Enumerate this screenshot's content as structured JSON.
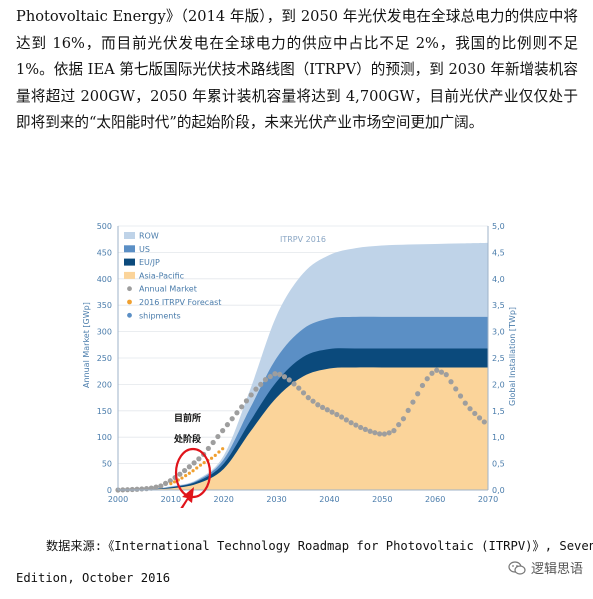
{
  "article": {
    "paragraph": "Photovoltaic Energy》（2014 年版），到 2050 年光伏发电在全球总电力的供应中将达到 16%，而目前光伏发电在全球电力的供应中占比不足 2%，我国的比例则不足 1%。依据 IEA 第七版国际光伏技术路线图（ITRPV）的预测，到 2030 年新增装机容量将超过 200GW，2050 年累计装机容量将达到 4,700GW，目前光伏产业仅仅处于即将到来的“太阳能时代”的起始阶段，未来光伏产业市场空间更加广阔。"
  },
  "chart_data": {
    "type": "area",
    "watermark": "ITRPV 2016",
    "ylabel_left": "Annual Market [GWp]",
    "ylabel_right": "Global Installation [TWp]",
    "x_ticks": [
      "2000",
      "2010",
      "2020",
      "2030",
      "2040",
      "2050",
      "2060",
      "2070"
    ],
    "y_ticks_left": [
      "0",
      "50",
      "100",
      "150",
      "200",
      "250",
      "300",
      "350",
      "400",
      "450",
      "500"
    ],
    "y_ticks_right": [
      "0,0",
      "0,5",
      "1,0",
      "1,5",
      "2,0",
      "2,5",
      "3,0",
      "3,5",
      "4,0",
      "4,5",
      "5,0"
    ],
    "xlim": [
      2000,
      2070
    ],
    "ylim_left": [
      0,
      500
    ],
    "ylim_right": [
      0,
      5.0
    ],
    "legend_position": "top-left",
    "legend": [
      {
        "key": "row",
        "name": "ROW",
        "color": "#bfd3e8",
        "kind": "swatch"
      },
      {
        "key": "us",
        "name": "US",
        "color": "#5b8fc5",
        "kind": "swatch"
      },
      {
        "key": "eujp",
        "name": "EU/JP",
        "color": "#0b4a7c",
        "kind": "swatch"
      },
      {
        "key": "ap",
        "name": "Asia-Pacific",
        "color": "#fbd49a",
        "kind": "swatch"
      },
      {
        "key": "annual",
        "name": "Annual Market",
        "color": "#9e9e9e",
        "kind": "dot"
      },
      {
        "key": "forecast",
        "name": "2016 ITRPV Forecast",
        "color": "#f0a030",
        "kind": "dot"
      },
      {
        "key": "shipments",
        "name": "shipments",
        "color": "#5b8fc5",
        "kind": "dot"
      }
    ],
    "x": [
      2000,
      2005,
      2010,
      2015,
      2020,
      2025,
      2030,
      2035,
      2040,
      2045,
      2050,
      2055,
      2060,
      2065,
      2070
    ],
    "series_cumulative_twp": [
      {
        "name": "Asia-Pacific",
        "values": [
          0.0,
          0.01,
          0.03,
          0.12,
          0.4,
          1.1,
          1.75,
          2.15,
          2.3,
          2.32,
          2.32,
          2.32,
          2.32,
          2.32,
          2.32
        ]
      },
      {
        "name": "EU/JP",
        "values": [
          0.0,
          0.01,
          0.05,
          0.16,
          0.5,
          1.3,
          2.05,
          2.52,
          2.67,
          2.68,
          2.68,
          2.68,
          2.68,
          2.68,
          2.68
        ]
      },
      {
        "name": "US",
        "values": [
          0.0,
          0.01,
          0.06,
          0.18,
          0.58,
          1.55,
          2.5,
          3.05,
          3.25,
          3.28,
          3.28,
          3.28,
          3.28,
          3.28,
          3.28
        ]
      },
      {
        "name": "ROW",
        "values": [
          0.0,
          0.01,
          0.07,
          0.2,
          0.65,
          1.9,
          3.3,
          4.1,
          4.45,
          4.58,
          4.63,
          4.65,
          4.66,
          4.67,
          4.68
        ]
      }
    ],
    "annual_market_gwp": {
      "x": [
        2000,
        2003,
        2006,
        2008,
        2010,
        2012,
        2014,
        2016,
        2018,
        2020,
        2022,
        2024,
        2026,
        2028,
        2030,
        2032,
        2034,
        2036,
        2038,
        2040,
        2042,
        2044,
        2046,
        2048,
        2050,
        2052,
        2054,
        2056,
        2058,
        2060,
        2062,
        2064,
        2066,
        2068,
        2070
      ],
      "values": [
        0,
        1,
        3,
        7,
        18,
        32,
        48,
        65,
        90,
        115,
        140,
        165,
        190,
        210,
        222,
        212,
        195,
        175,
        160,
        150,
        140,
        128,
        118,
        110,
        105,
        110,
        135,
        170,
        205,
        228,
        220,
        190,
        160,
        140,
        123
      ]
    },
    "forecast_gwp": {
      "x": [
        2010,
        2012,
        2014,
        2016,
        2018,
        2020
      ],
      "values": [
        12,
        22,
        35,
        50,
        62,
        80
      ]
    },
    "annotation": {
      "line1": "目前所",
      "line2": "处阶段",
      "highlight_year": 2014,
      "color": "#e0141b"
    }
  },
  "caption": {
    "line1": "数据来源:《International Technology Roadmap for Photovoltaic (ITRPV)》, Seventh",
    "line2": "Edition, October 2016"
  },
  "watermark": {
    "text": "逻辑思语",
    "icon": "wechat-icon"
  }
}
